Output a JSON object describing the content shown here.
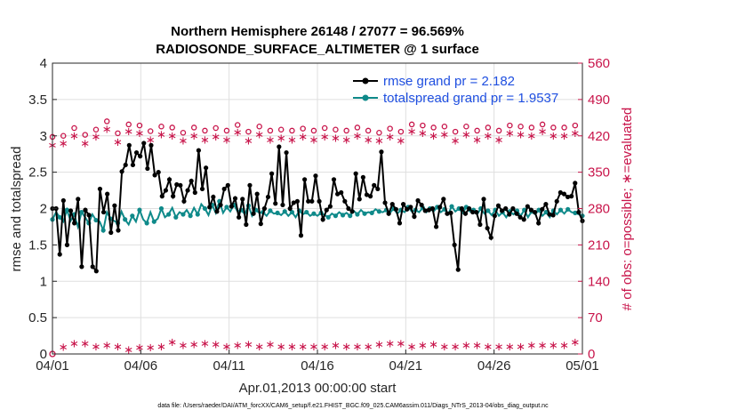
{
  "colors": {
    "rmse": "#000000",
    "spread": "#0f8a8a",
    "obs": "#c8144a",
    "legend_text": "#1f4fe0",
    "axis": "#262626"
  },
  "chart_data": {
    "type": "line",
    "title_line1": "Northern Hemisphere 26148 / 27077 = 96.569%",
    "title_line2": "RADIOSONDE_SURFACE_ALTIMETER @ 1 surface",
    "xlabel": "Apr.01,2013 00:00:00 start",
    "ylabel": "rmse and totalspread",
    "ylabel_right": "# of obs: o=possible; ∗=evaluated",
    "xlim": [
      0,
      30
    ],
    "ylim": [
      0,
      4
    ],
    "ylim_right": [
      0,
      560
    ],
    "x_ticks": [
      0,
      5,
      10,
      15,
      20,
      25,
      30
    ],
    "x_tick_labels": [
      "04/01",
      "04/06",
      "04/11",
      "04/16",
      "04/21",
      "04/26",
      "05/01"
    ],
    "y_ticks": [
      "0",
      "0.5",
      "1",
      "1.5",
      "2",
      "2.5",
      "3",
      "3.5",
      "4"
    ],
    "y_ticks_right": [
      "0",
      "70",
      "140",
      "210",
      "280",
      "350",
      "420",
      "490",
      "560"
    ],
    "legend": [
      {
        "name": "rmse grand pr = 2.182",
        "key": "rmse"
      },
      {
        "name": "totalspread grand pr = 1.9537",
        "key": "spread"
      }
    ],
    "footer": "data file: /Users/raeder/DAI/ATM_forcXX/CAM6_setup/f.e21.FHIST_BGC.f09_025.CAM6assim.011/Diags_NTrS_2013-04/obs_diag_output.nc",
    "series": [
      {
        "name": "rmse",
        "values": [
          2.0,
          2.0,
          1.37,
          2.11,
          1.5,
          1.97,
          1.8,
          2.13,
          1.2,
          1.98,
          1.91,
          1.2,
          1.14,
          2.27,
          1.95,
          2.2,
          1.67,
          2.04,
          1.7,
          2.51,
          2.6,
          2.87,
          2.6,
          2.77,
          2.72,
          2.9,
          2.55,
          2.87,
          2.46,
          2.5,
          2.17,
          2.25,
          2.4,
          2.17,
          2.33,
          2.32,
          2.1,
          2.25,
          2.38,
          2.22,
          2.8,
          2.27,
          2.56,
          2.02,
          2.16,
          1.96,
          2.05,
          2.27,
          2.32,
          2.03,
          2.14,
          1.88,
          2.13,
          1.78,
          2.32,
          1.93,
          2.2,
          1.79,
          2.0,
          2.16,
          2.48,
          2.07,
          2.85,
          2.05,
          2.77,
          2.0,
          2.08,
          2.1,
          1.63,
          2.4,
          2.1,
          2.1,
          2.45,
          2.1,
          1.85,
          1.98,
          2.03,
          2.4,
          2.2,
          2.22,
          2.1,
          2.0,
          1.96,
          2.48,
          2.13,
          2.43,
          2.19,
          2.17,
          2.32,
          2.27,
          2.78,
          2.08,
          1.93,
          2.06,
          1.99,
          1.8,
          2.06,
          1.99,
          2.02,
          1.89,
          2.11,
          2.05,
          1.97,
          1.98,
          2.0,
          1.75,
          2.02,
          2.13,
          1.93,
          1.94,
          1.5,
          1.16,
          2.0,
          1.93,
          2.0,
          1.95,
          1.95,
          1.78,
          2.13,
          1.73,
          1.6,
          1.9,
          2.04,
          1.97,
          2.0,
          1.92,
          2.0,
          1.93,
          1.88,
          1.85,
          2.03,
          1.98,
          1.95,
          1.8,
          1.99,
          2.06,
          1.92,
          1.91,
          2.1,
          2.22,
          2.2,
          2.16,
          2.17,
          2.35,
          1.95,
          1.83
        ]
      },
      {
        "name": "totalspread",
        "values": [
          1.85,
          1.95,
          1.88,
          1.82,
          1.98,
          1.83,
          1.92,
          1.75,
          1.95,
          1.88,
          1.8,
          1.92,
          1.84,
          1.82,
          1.7,
          1.95,
          1.86,
          1.83,
          1.8,
          1.96,
          1.85,
          1.78,
          1.9,
          1.82,
          1.98,
          1.85,
          1.8,
          1.95,
          1.82,
          1.86,
          2.0,
          1.88,
          1.92,
          2.01,
          1.88,
          1.95,
          1.92,
          1.98,
          1.9,
          2.01,
          1.92,
          2.06,
          2.0,
          1.91,
          2.05,
          1.94,
          2.1,
          1.94,
          2.02,
          1.96,
          2.05,
          1.96,
          1.98,
          1.92,
          2.04,
          1.9,
          1.98,
          1.94,
          1.95,
          1.9,
          1.97,
          1.93,
          1.94,
          1.91,
          1.96,
          1.9,
          1.95,
          1.88,
          1.97,
          1.92,
          1.95,
          1.9,
          1.93,
          1.9,
          1.94,
          1.91,
          1.88,
          1.93,
          1.9,
          1.95,
          1.91,
          1.94,
          1.9,
          1.97,
          1.92,
          1.98,
          1.93,
          1.95,
          1.94,
          1.99,
          1.96,
          1.95,
          1.98,
          1.94,
          2.0,
          1.93,
          1.98,
          1.95,
          2.02,
          1.96,
          1.98,
          1.95,
          2.01,
          1.95,
          2.0,
          1.96,
          2.02,
          1.95,
          1.99,
          1.92,
          2.03,
          1.96,
          2.0,
          1.94,
          2.02,
          1.96,
          1.98,
          1.92,
          2.0,
          1.93,
          1.97,
          1.91,
          1.98,
          1.9,
          1.95,
          1.88,
          1.96,
          1.92,
          1.97,
          1.9,
          1.98,
          1.88,
          1.96,
          1.92,
          1.98,
          1.9,
          1.95,
          1.88,
          1.97,
          1.92,
          1.98,
          1.93,
          1.99,
          1.95,
          1.94,
          1.92,
          1.9
        ]
      },
      {
        "name": "possible",
        "values": [
          418,
          425,
          430,
          420,
          438,
          415,
          435,
          428,
          440,
          422,
          442,
          430,
          432,
          445,
          430,
          448,
          420,
          438,
          425,
          440,
          430,
          442,
          432,
          426,
          440,
          430,
          437,
          429,
          441,
          435,
          438,
          432,
          425,
          436,
          430,
          440,
          426,
          434,
          428,
          436,
          432,
          438,
          430,
          440,
          428,
          435,
          432,
          438,
          430,
          436,
          432,
          441,
          429,
          436,
          428,
          434,
          430,
          438,
          425,
          436,
          430,
          438,
          420,
          432,
          426,
          438,
          430,
          436,
          428,
          434,
          428,
          433,
          430,
          436,
          428,
          435,
          430,
          438,
          432,
          426,
          436,
          430,
          438,
          426,
          436,
          428,
          434,
          430,
          438,
          432,
          426,
          436,
          430,
          434,
          430,
          438,
          428,
          436,
          430,
          442,
          438,
          445,
          440,
          438,
          442,
          436,
          440,
          432,
          438,
          430,
          436,
          428,
          436,
          430,
          438,
          426,
          436,
          430,
          438,
          432,
          436,
          428,
          434,
          430,
          438,
          432,
          440,
          436,
          430,
          438,
          432,
          440,
          436,
          430,
          438,
          442,
          432,
          438,
          436,
          438,
          440,
          436,
          438,
          432,
          440,
          436,
          438
        ]
      },
      {
        "name": "evaluated",
        "values": [
          402,
          412,
          418,
          405,
          422,
          398,
          420,
          410,
          425,
          405,
          428,
          412,
          418,
          430,
          415,
          432,
          400,
          422,
          408,
          425,
          412,
          428,
          416,
          410,
          425,
          415,
          422,
          412,
          426,
          418,
          422,
          415,
          408,
          420,
          412,
          425,
          410,
          418,
          412,
          420,
          415,
          422,
          412,
          425,
          410,
          418,
          415,
          422,
          412,
          420,
          415,
          426,
          412,
          420,
          410,
          418,
          412,
          422,
          408,
          420,
          412,
          422,
          402,
          415,
          410,
          422,
          412,
          420,
          410,
          418,
          412,
          418,
          412,
          420,
          410,
          418,
          412,
          422,
          415,
          408,
          420,
          412,
          422,
          410,
          420,
          412,
          418,
          412,
          422,
          415,
          410,
          420,
          412,
          418,
          412,
          422,
          410,
          420,
          412,
          428,
          422,
          430,
          425,
          422,
          428,
          420,
          425,
          418,
          422,
          412,
          420,
          410,
          420,
          412,
          422,
          408,
          420,
          412,
          422,
          415,
          420,
          410,
          418,
          412,
          422,
          415,
          425,
          420,
          412,
          422,
          415,
          425,
          420,
          412,
          422,
          428,
          415,
          422,
          420,
          422,
          425,
          420,
          422,
          415,
          425,
          420,
          422
        ]
      },
      {
        "name": "lower_possible",
        "values": [
          0,
          12,
          15,
          13,
          18,
          16,
          20,
          18,
          15,
          20,
          14,
          12,
          14,
          10,
          12,
          16,
          14,
          18,
          14,
          16,
          12,
          8,
          10,
          14,
          12,
          14,
          16,
          12,
          14,
          18,
          14,
          16,
          18,
          22,
          18,
          20,
          16,
          18,
          22,
          18,
          20,
          16,
          20,
          18,
          16,
          18,
          14,
          16,
          14,
          18,
          14,
          16,
          14,
          16,
          18,
          14,
          16,
          14,
          18,
          16,
          18,
          14,
          16,
          14,
          18,
          16,
          14,
          16,
          18,
          14,
          16,
          18,
          14,
          16,
          18,
          14,
          16,
          14,
          16,
          18,
          16,
          14,
          16,
          18,
          14,
          16,
          18,
          14,
          16,
          14,
          18,
          16,
          14,
          20,
          18,
          16,
          20,
          18,
          16,
          14,
          16,
          18,
          16,
          20,
          16,
          18,
          20,
          18,
          14,
          16,
          18,
          14,
          16,
          20,
          16,
          18,
          14,
          16,
          18,
          16,
          14,
          18,
          16,
          14,
          18,
          16,
          14,
          18,
          16,
          14,
          16,
          18,
          16,
          14,
          18,
          16,
          14,
          18,
          16,
          20,
          18,
          16,
          14,
          18,
          22,
          16,
          12
        ]
      }
    ]
  }
}
